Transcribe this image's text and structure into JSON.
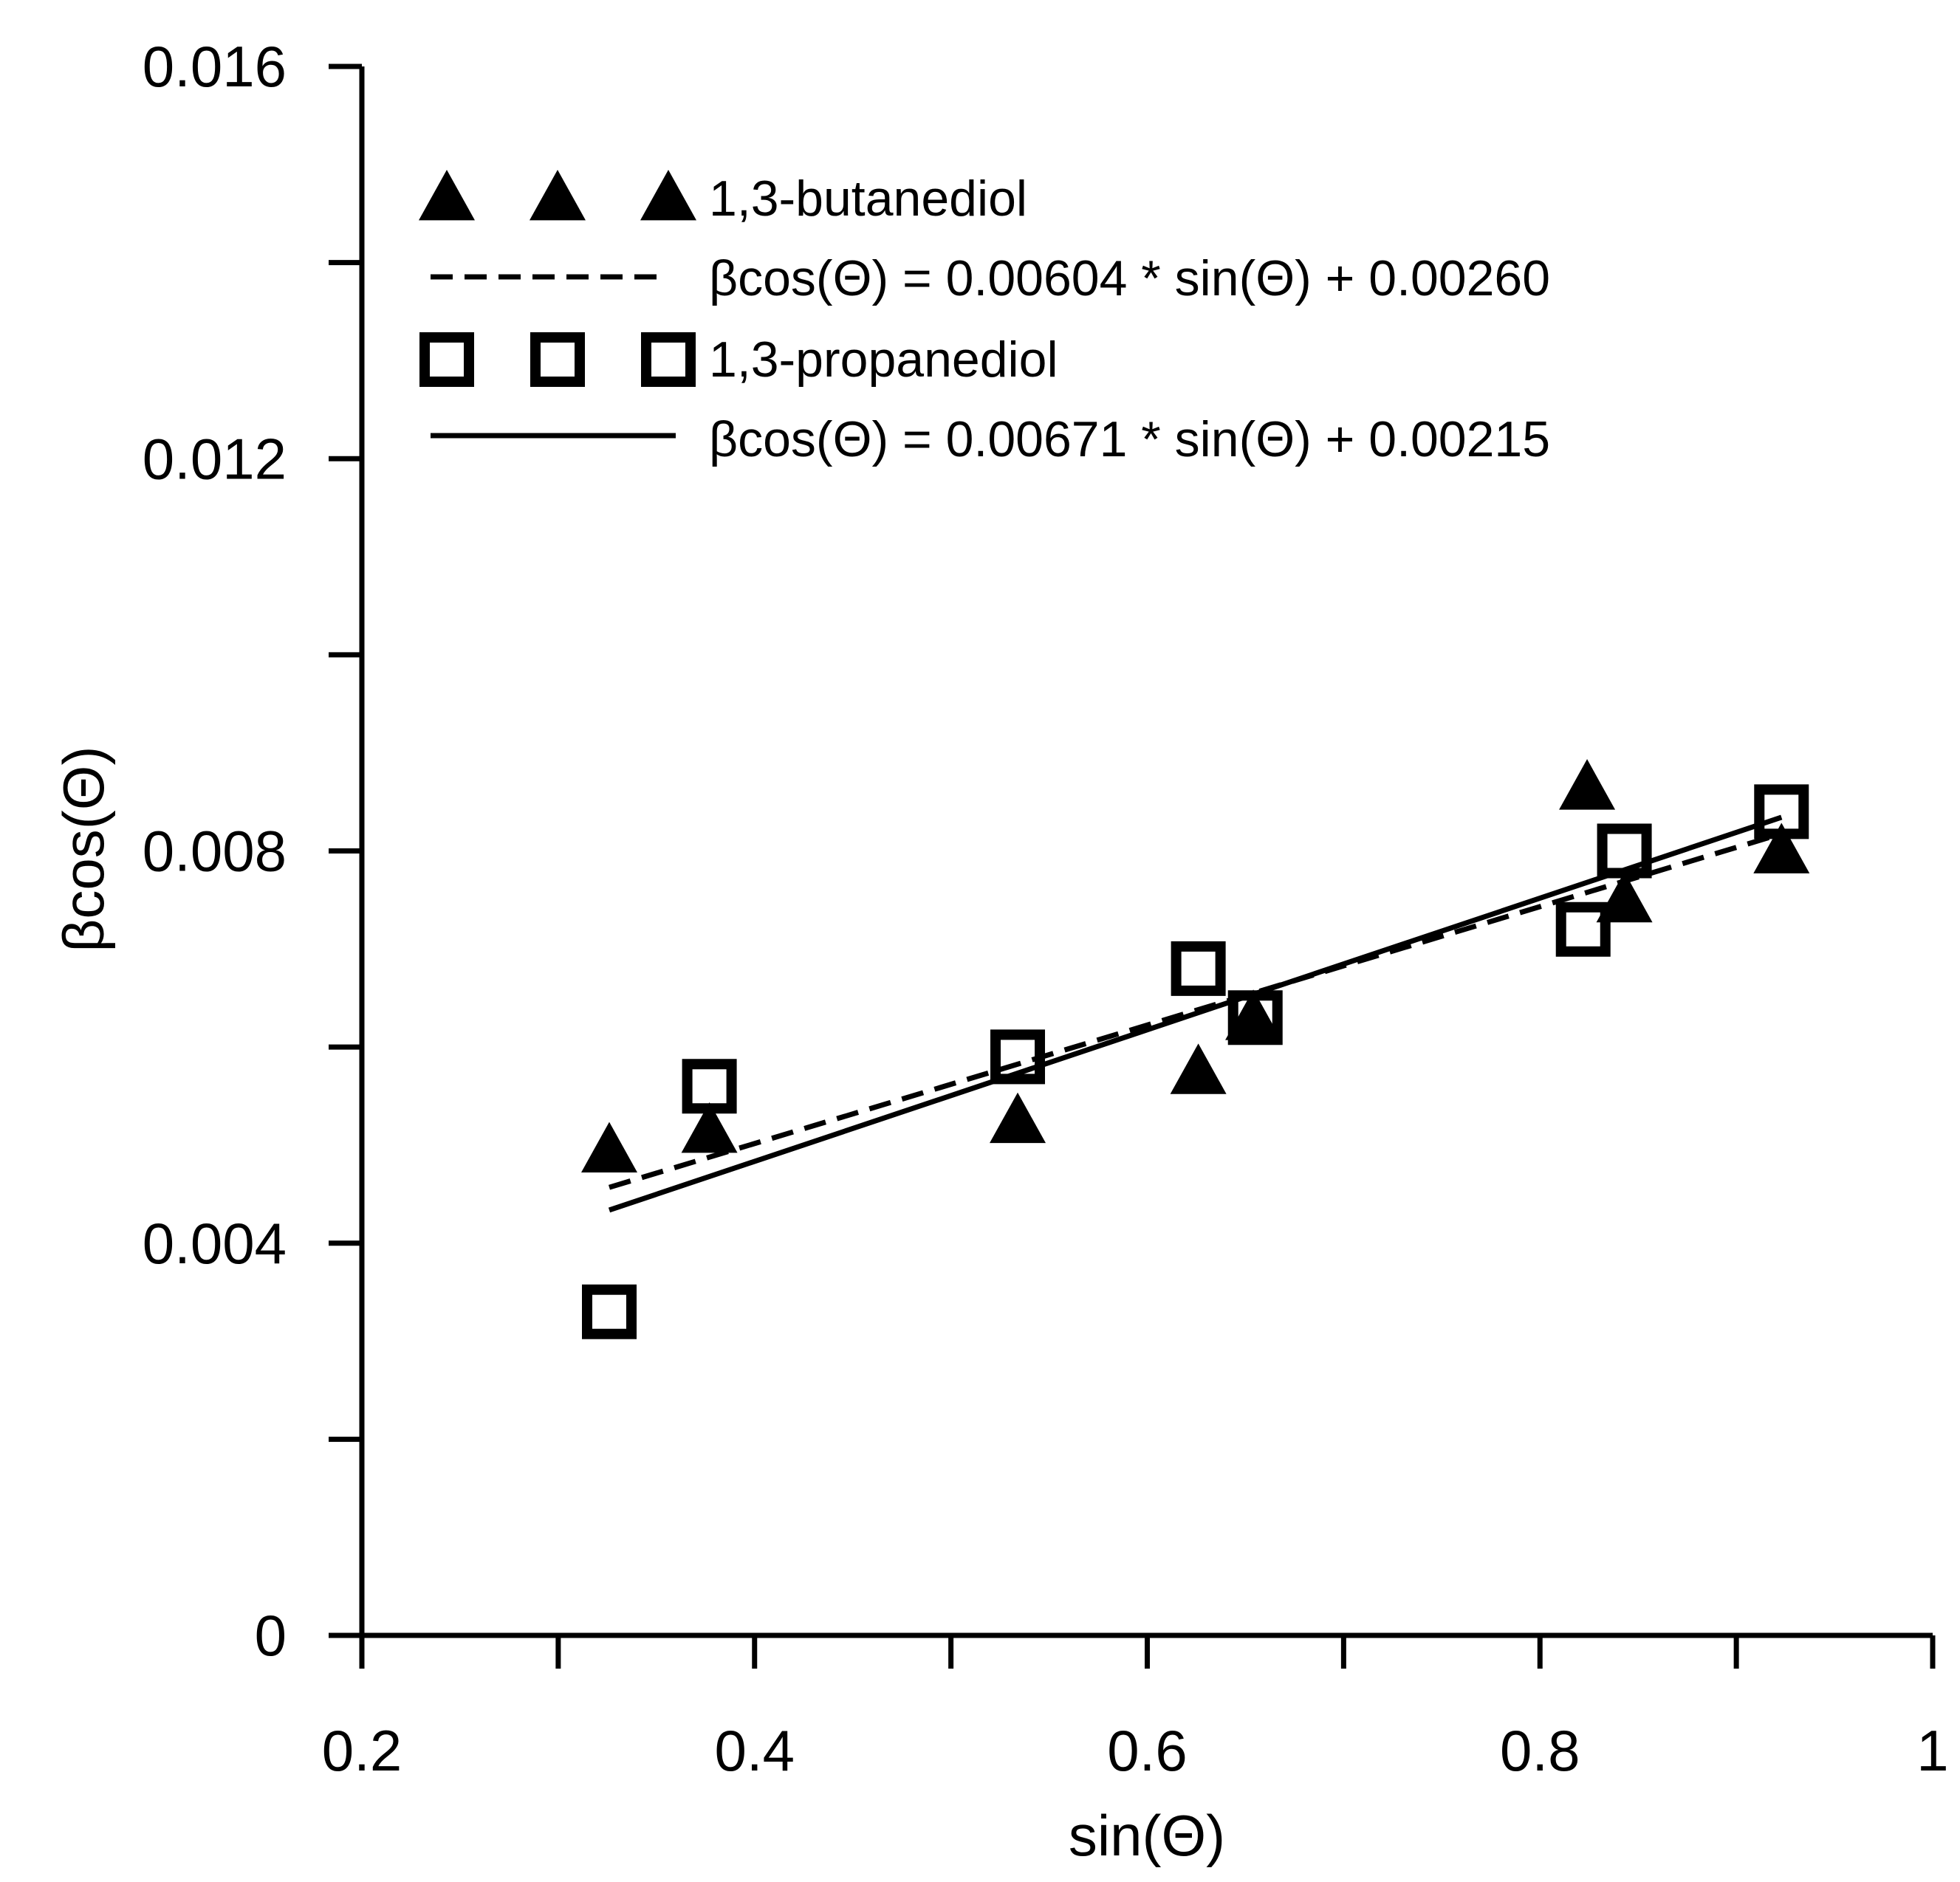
{
  "chart_data": {
    "type": "scatter",
    "title": "",
    "xlabel": "sin(Θ)",
    "ylabel": "βcos(Θ)",
    "xlim": [
      0.2,
      1.0
    ],
    "ylim": [
      0,
      0.016
    ],
    "x_ticks": [
      0.2,
      0.3,
      0.4,
      0.5,
      0.6,
      0.7,
      0.8,
      0.9,
      1.0
    ],
    "x_tick_labels": [
      "0.2",
      "",
      "0.4",
      "",
      "0.6",
      "",
      "0.8",
      "",
      "1"
    ],
    "y_ticks": [
      0,
      0.002,
      0.004,
      0.006,
      0.008,
      0.01,
      0.012,
      0.014,
      0.016
    ],
    "y_tick_labels": [
      "0",
      "",
      "0.004",
      "",
      "0.008",
      "",
      "0.012",
      "",
      "0.016"
    ],
    "grid": false,
    "legend_position": "top-left",
    "series": [
      {
        "name": "1,3-butanediol",
        "marker": "filled-triangle",
        "x": [
          0.326,
          0.377,
          0.534,
          0.626,
          0.654,
          0.824,
          0.843,
          0.923
        ],
        "y": [
          0.00495,
          0.00515,
          0.00525,
          0.00575,
          0.0063,
          0.00865,
          0.0075,
          0.008
        ]
      },
      {
        "name": "1,3-propanediol",
        "marker": "open-square",
        "x": [
          0.326,
          0.377,
          0.534,
          0.626,
          0.655,
          0.822,
          0.843,
          0.923
        ],
        "y": [
          0.0033,
          0.0056,
          0.0059,
          0.0068,
          0.0063,
          0.0072,
          0.008,
          0.0084
        ]
      }
    ],
    "fits": [
      {
        "name": "βcos(Θ) = 0.00604 * sin(Θ) + 0.00260",
        "style": "dashed",
        "slope": 0.00604,
        "intercept": 0.0026,
        "x_range": [
          0.326,
          0.923
        ]
      },
      {
        "name": "βcos(Θ) = 0.00671 * sin(Θ) + 0.00215",
        "style": "solid",
        "slope": 0.00671,
        "intercept": 0.00215,
        "x_range": [
          0.326,
          0.923
        ]
      }
    ]
  }
}
